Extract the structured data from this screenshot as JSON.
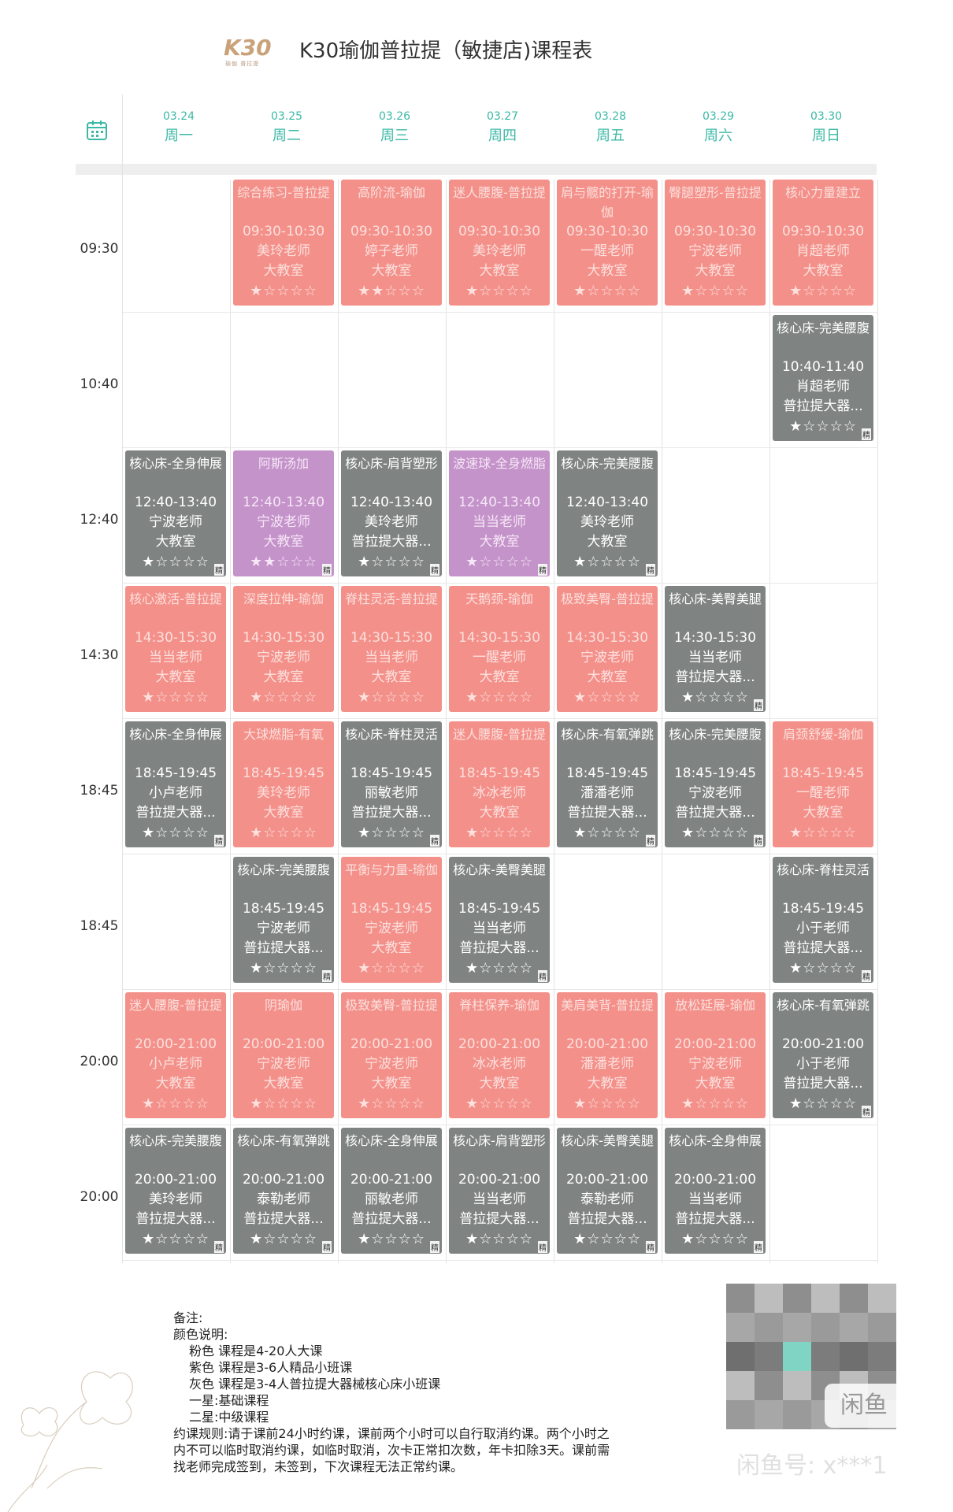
{
  "header": {
    "logo_text": "K30",
    "logo_sub": "瑜伽 普拉提",
    "title": "K30瑜伽普拉提（敏捷店)课程表"
  },
  "days": [
    {
      "date": "03.24",
      "weekday": "周一"
    },
    {
      "date": "03.25",
      "weekday": "周二"
    },
    {
      "date": "03.26",
      "weekday": "周三"
    },
    {
      "date": "03.27",
      "weekday": "周四"
    },
    {
      "date": "03.28",
      "weekday": "周五"
    },
    {
      "date": "03.29",
      "weekday": "周六"
    },
    {
      "date": "03.30",
      "weekday": "周日"
    }
  ],
  "rows": [
    "09:30",
    "10:40",
    "12:40",
    "14:30",
    "18:45",
    "18:45",
    "20:00",
    "20:00"
  ],
  "colors": {
    "pink": "#f4908a",
    "gray": "#7f8482",
    "purple": "#c493c9",
    "accent": "#3cb9a6"
  },
  "courses": [
    {
      "row": 0,
      "col": 1,
      "color": "pink",
      "name": "综合练习-普拉提",
      "time": "09:30-10:30",
      "teacher": "美玲老师",
      "room": "大教室",
      "stars": 1,
      "jing": ""
    },
    {
      "row": 0,
      "col": 2,
      "color": "pink",
      "name": "高阶流-瑜伽",
      "time": "09:30-10:30",
      "teacher": "婷子老师",
      "room": "大教室",
      "stars": 2,
      "jing": ""
    },
    {
      "row": 0,
      "col": 3,
      "color": "pink",
      "name": "迷人腰腹-普拉提",
      "time": "09:30-10:30",
      "teacher": "美玲老师",
      "room": "大教室",
      "stars": 1,
      "jing": ""
    },
    {
      "row": 0,
      "col": 4,
      "color": "pink",
      "name": "肩与髋的打开-瑜伽",
      "time": "09:30-10:30",
      "teacher": "一醒老师",
      "room": "大教室",
      "stars": 1,
      "jing": ""
    },
    {
      "row": 0,
      "col": 5,
      "color": "pink",
      "name": "臀腿塑形-普拉提",
      "time": "09:30-10:30",
      "teacher": "宁波老师",
      "room": "大教室",
      "stars": 1,
      "jing": ""
    },
    {
      "row": 0,
      "col": 6,
      "color": "pink",
      "name": "核心力量建立",
      "time": "09:30-10:30",
      "teacher": "肖超老师",
      "room": "大教室",
      "stars": 1,
      "jing": ""
    },
    {
      "row": 1,
      "col": 6,
      "color": "gray",
      "name": "核心床-完美腰腹",
      "time": "10:40-11:40",
      "teacher": "肖超老师",
      "room": "普拉提大器...",
      "stars": 1,
      "jing": "精"
    },
    {
      "row": 2,
      "col": 0,
      "color": "gray",
      "name": "核心床-全身伸展",
      "time": "12:40-13:40",
      "teacher": "宁波老师",
      "room": "大教室",
      "stars": 1,
      "jing": "精"
    },
    {
      "row": 2,
      "col": 1,
      "color": "purple",
      "name": "阿斯汤加",
      "time": "12:40-13:40",
      "teacher": "宁波老师",
      "room": "大教室",
      "stars": 2,
      "jing": "精"
    },
    {
      "row": 2,
      "col": 2,
      "color": "gray",
      "name": "核心床-肩背塑形",
      "time": "12:40-13:40",
      "teacher": "美玲老师",
      "room": "普拉提大器...",
      "stars": 1,
      "jing": "精"
    },
    {
      "row": 2,
      "col": 3,
      "color": "purple",
      "name": "波速球-全身燃脂",
      "time": "12:40-13:40",
      "teacher": "当当老师",
      "room": "大教室",
      "stars": 1,
      "jing": "精"
    },
    {
      "row": 2,
      "col": 4,
      "color": "gray",
      "name": "核心床-完美腰腹",
      "time": "12:40-13:40",
      "teacher": "美玲老师",
      "room": "大教室",
      "stars": 1,
      "jing": "精"
    },
    {
      "row": 3,
      "col": 0,
      "color": "pink",
      "name": "核心激活-普拉提",
      "time": "14:30-15:30",
      "teacher": "当当老师",
      "room": "大教室",
      "stars": 1,
      "jing": ""
    },
    {
      "row": 3,
      "col": 1,
      "color": "pink",
      "name": "深度拉伸-瑜伽",
      "time": "14:30-15:30",
      "teacher": "宁波老师",
      "room": "大教室",
      "stars": 1,
      "jing": ""
    },
    {
      "row": 3,
      "col": 2,
      "color": "pink",
      "name": "脊柱灵活-普拉提",
      "time": "14:30-15:30",
      "teacher": "当当老师",
      "room": "大教室",
      "stars": 1,
      "jing": ""
    },
    {
      "row": 3,
      "col": 3,
      "color": "pink",
      "name": "天鹅颈-瑜伽",
      "time": "14:30-15:30",
      "teacher": "一醒老师",
      "room": "大教室",
      "stars": 1,
      "jing": ""
    },
    {
      "row": 3,
      "col": 4,
      "color": "pink",
      "name": "极致美臀-普拉提",
      "time": "14:30-15:30",
      "teacher": "宁波老师",
      "room": "大教室",
      "stars": 1,
      "jing": ""
    },
    {
      "row": 3,
      "col": 5,
      "color": "gray",
      "name": "核心床-美臀美腿",
      "time": "14:30-15:30",
      "teacher": "当当老师",
      "room": "普拉提大器...",
      "stars": 1,
      "jing": "精"
    },
    {
      "row": 4,
      "col": 0,
      "color": "gray",
      "name": "核心床-全身伸展",
      "time": "18:45-19:45",
      "teacher": "小卢老师",
      "room": "普拉提大器...",
      "stars": 1,
      "jing": "精"
    },
    {
      "row": 4,
      "col": 1,
      "color": "pink",
      "name": "大球燃脂-有氧",
      "time": "18:45-19:45",
      "teacher": "美玲老师",
      "room": "大教室",
      "stars": 1,
      "jing": ""
    },
    {
      "row": 4,
      "col": 2,
      "color": "gray",
      "name": "核心床-脊柱灵活",
      "time": "18:45-19:45",
      "teacher": "丽敏老师",
      "room": "普拉提大器...",
      "stars": 1,
      "jing": "精"
    },
    {
      "row": 4,
      "col": 3,
      "color": "pink",
      "name": "迷人腰腹-普拉提",
      "time": "18:45-19:45",
      "teacher": "冰冰老师",
      "room": "大教室",
      "stars": 1,
      "jing": ""
    },
    {
      "row": 4,
      "col": 4,
      "color": "gray",
      "name": "核心床-有氧弹跳",
      "time": "18:45-19:45",
      "teacher": "潘潘老师",
      "room": "普拉提大器...",
      "stars": 1,
      "jing": "精"
    },
    {
      "row": 4,
      "col": 5,
      "color": "gray",
      "name": "核心床-完美腰腹",
      "time": "18:45-19:45",
      "teacher": "宁波老师",
      "room": "普拉提大器...",
      "stars": 1,
      "jing": "精"
    },
    {
      "row": 4,
      "col": 6,
      "color": "pink",
      "name": "肩颈舒缓-瑜伽",
      "time": "18:45-19:45",
      "teacher": "一醒老师",
      "room": "大教室",
      "stars": 1,
      "jing": ""
    },
    {
      "row": 5,
      "col": 1,
      "color": "gray",
      "name": "核心床-完美腰腹",
      "time": "18:45-19:45",
      "teacher": "宁波老师",
      "room": "普拉提大器...",
      "stars": 1,
      "jing": "精"
    },
    {
      "row": 5,
      "col": 2,
      "color": "pink",
      "name": "平衡与力量-瑜伽",
      "time": "18:45-19:45",
      "teacher": "宁波老师",
      "room": "大教室",
      "stars": 1,
      "jing": ""
    },
    {
      "row": 5,
      "col": 3,
      "color": "gray",
      "name": "核心床-美臀美腿",
      "time": "18:45-19:45",
      "teacher": "当当老师",
      "room": "普拉提大器...",
      "stars": 1,
      "jing": "精"
    },
    {
      "row": 5,
      "col": 6,
      "color": "gray",
      "name": "核心床-脊柱灵活",
      "time": "18:45-19:45",
      "teacher": "小于老师",
      "room": "普拉提大器...",
      "stars": 1,
      "jing": "精"
    },
    {
      "row": 6,
      "col": 0,
      "color": "pink",
      "name": "迷人腰腹-普拉提",
      "time": "20:00-21:00",
      "teacher": "小卢老师",
      "room": "大教室",
      "stars": 1,
      "jing": ""
    },
    {
      "row": 6,
      "col": 1,
      "color": "pink",
      "name": "阴瑜伽",
      "time": "20:00-21:00",
      "teacher": "宁波老师",
      "room": "大教室",
      "stars": 1,
      "jing": ""
    },
    {
      "row": 6,
      "col": 2,
      "color": "pink",
      "name": "极致美臀-普拉提",
      "time": "20:00-21:00",
      "teacher": "宁波老师",
      "room": "大教室",
      "stars": 1,
      "jing": ""
    },
    {
      "row": 6,
      "col": 3,
      "color": "pink",
      "name": "脊柱保养-瑜伽",
      "time": "20:00-21:00",
      "teacher": "冰冰老师",
      "room": "大教室",
      "stars": 1,
      "jing": ""
    },
    {
      "row": 6,
      "col": 4,
      "color": "pink",
      "name": "美肩美背-普拉提",
      "time": "20:00-21:00",
      "teacher": "潘潘老师",
      "room": "大教室",
      "stars": 1,
      "jing": ""
    },
    {
      "row": 6,
      "col": 5,
      "color": "pink",
      "name": "放松延展-瑜伽",
      "time": "20:00-21:00",
      "teacher": "宁波老师",
      "room": "大教室",
      "stars": 1,
      "jing": ""
    },
    {
      "row": 6,
      "col": 6,
      "color": "gray",
      "name": "核心床-有氧弹跳",
      "time": "20:00-21:00",
      "teacher": "小于老师",
      "room": "普拉提大器...",
      "stars": 1,
      "jing": "精"
    },
    {
      "row": 7,
      "col": 0,
      "color": "gray",
      "name": "核心床-完美腰腹",
      "time": "20:00-21:00",
      "teacher": "美玲老师",
      "room": "普拉提大器...",
      "stars": 1,
      "jing": "精"
    },
    {
      "row": 7,
      "col": 1,
      "color": "gray",
      "name": "核心床-有氧弹跳",
      "time": "20:00-21:00",
      "teacher": "泰勒老师",
      "room": "普拉提大器...",
      "stars": 1,
      "jing": "精"
    },
    {
      "row": 7,
      "col": 2,
      "color": "gray",
      "name": "核心床-全身伸展",
      "time": "20:00-21:00",
      "teacher": "丽敏老师",
      "room": "普拉提大器...",
      "stars": 1,
      "jing": "精"
    },
    {
      "row": 7,
      "col": 3,
      "color": "gray",
      "name": "核心床-肩背塑形",
      "time": "20:00-21:00",
      "teacher": "当当老师",
      "room": "普拉提大器...",
      "stars": 1,
      "jing": "精"
    },
    {
      "row": 7,
      "col": 4,
      "color": "gray",
      "name": "核心床-美臀美腿",
      "time": "20:00-21:00",
      "teacher": "泰勒老师",
      "room": "普拉提大器...",
      "stars": 1,
      "jing": "精"
    },
    {
      "row": 7,
      "col": 5,
      "color": "gray",
      "name": "核心床-全身伸展",
      "time": "20:00-21:00",
      "teacher": "当当老师",
      "room": "普拉提大器...",
      "stars": 1,
      "jing": "精"
    }
  ],
  "notes": {
    "title": "备注:",
    "color_heading": "颜色说明:",
    "color_lines": [
      "粉色 课程是4-20人大课",
      "紫色 课程是3-6人精品小班课",
      "灰色 课程是3-4人普拉提大器械核心床小班课",
      "一星:基础课程",
      "二星:中级课程"
    ],
    "rules": "约课规则:请于课前24小时约课，课前两个小时可以自行取消约课。两个小时之内不可以临时取消约课，如临时取消，次卡正常扣次数，年卡扣除3天。课前需找老师完成签到，未签到，下次课程无法正常约课。"
  },
  "watermark": {
    "badge": "闲鱼",
    "id": "闲鱼号: x***1"
  }
}
